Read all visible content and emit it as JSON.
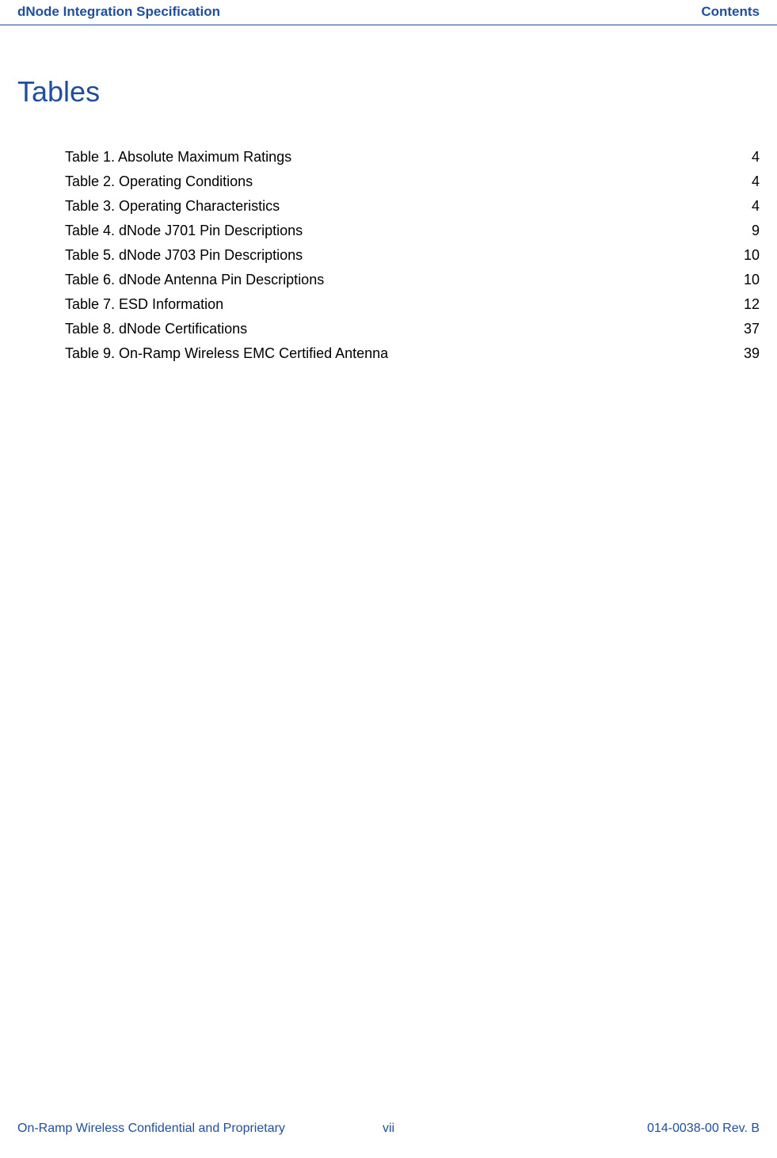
{
  "header": {
    "left": "dNode Integration Specification",
    "right": "Contents"
  },
  "section_title": "Tables",
  "toc": [
    {
      "label": "Table 1. Absolute Maximum Ratings",
      "page": "4"
    },
    {
      "label": "Table 2. Operating Conditions",
      "page": "4"
    },
    {
      "label": "Table 3. Operating Characteristics",
      "page": "4"
    },
    {
      "label": "Table 4. dNode J701 Pin Descriptions",
      "page": "9"
    },
    {
      "label": "Table 5. dNode J703 Pin Descriptions",
      "page": "10"
    },
    {
      "label": "Table 6. dNode Antenna Pin Descriptions",
      "page": "10"
    },
    {
      "label": "Table 7. ESD Information",
      "page": "12"
    },
    {
      "label": "Table 8. dNode Certifications",
      "page": "37"
    },
    {
      "label": "Table 9. On-Ramp Wireless EMC Certified Antenna",
      "page": "39"
    }
  ],
  "footer": {
    "left": "On-Ramp Wireless Confidential and Proprietary",
    "center": "vii",
    "right": "014-0038-00 Rev. B"
  },
  "colors": {
    "brand": "#1f4e9c",
    "text": "#000000",
    "background": "#ffffff"
  },
  "typography": {
    "header_fontsize": 17,
    "title_fontsize": 36,
    "body_fontsize": 18,
    "footer_fontsize": 16
  }
}
